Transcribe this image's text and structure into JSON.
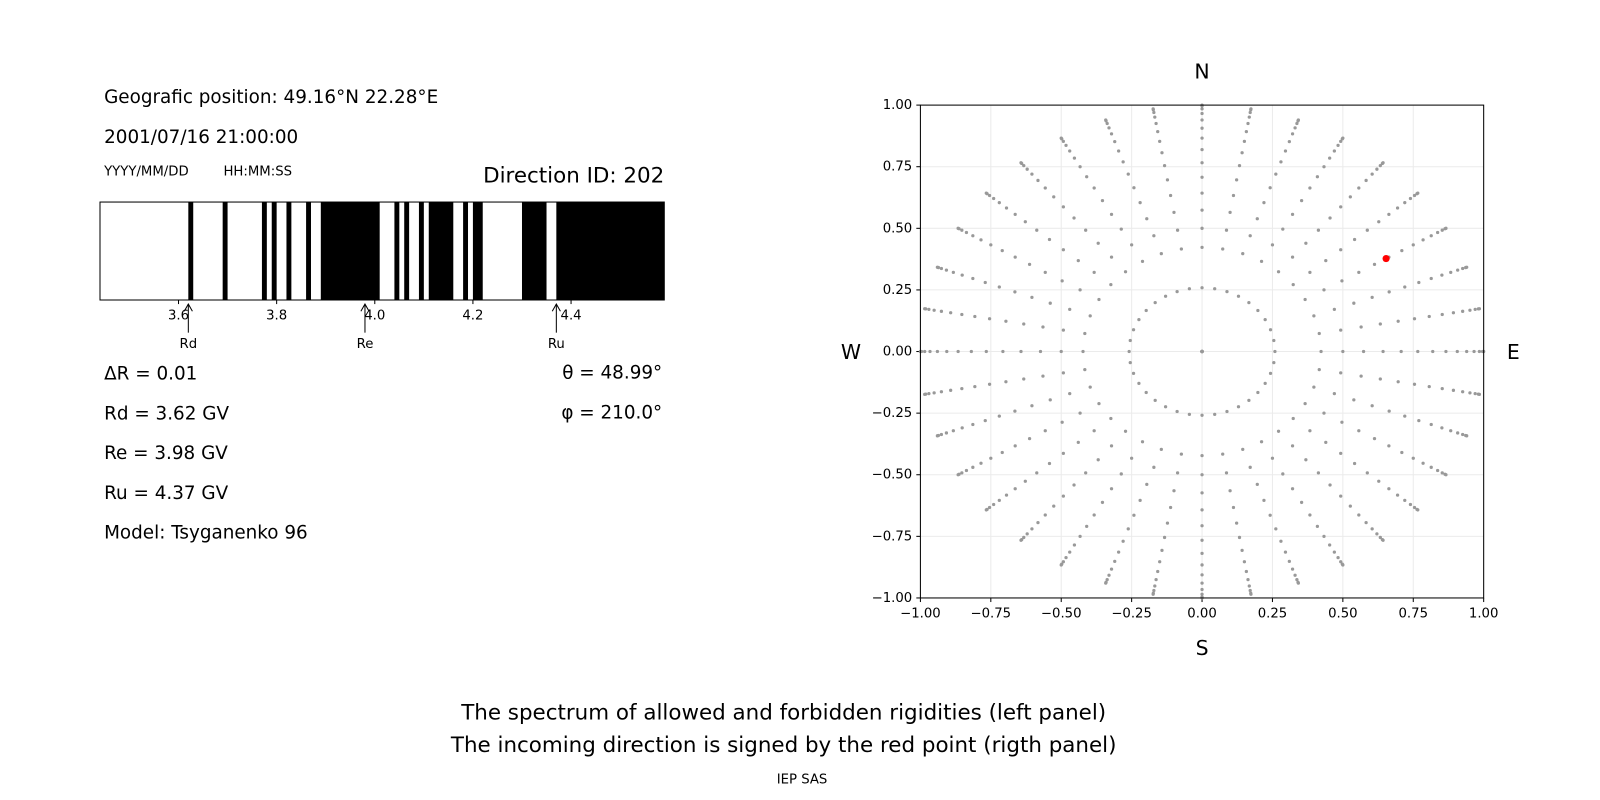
{
  "info": {
    "position": "Geografic position: 49.16°N 22.28°E",
    "datetime": "2001/07/16 21:00:00",
    "date_format": "YYYY/MM/DD",
    "time_format": "HH:MM:SS",
    "direction": "Direction ID: 202",
    "delta_r": "ΔR = 0.01",
    "rd": "Rd = 3.62 GV",
    "re": "Re = 3.98 GV",
    "ru": "Ru = 4.37 GV",
    "model": "Model: Tsyganenko 96",
    "theta": "θ = 48.99°",
    "phi": "φ = 210.0°"
  },
  "chart_data": [
    {
      "type": "spectrum",
      "color": "#000000",
      "forbidden": [
        [
          3.62,
          3.63
        ],
        [
          3.69,
          3.7
        ],
        [
          3.77,
          3.78
        ],
        [
          3.79,
          3.8
        ],
        [
          3.82,
          3.83
        ],
        [
          3.86,
          3.87
        ],
        [
          3.89,
          4.01
        ],
        [
          4.04,
          4.05
        ],
        [
          4.06,
          4.07
        ],
        [
          4.09,
          4.1
        ],
        [
          4.11,
          4.16
        ],
        [
          4.18,
          4.19
        ],
        [
          4.2,
          4.22
        ],
        [
          4.3,
          4.35
        ],
        [
          4.37,
          4.59
        ]
      ],
      "xlim": [
        3.44,
        4.59
      ],
      "xticks": [
        3.6,
        3.8,
        {
          "value": 4,
          "label": "4.0"
        },
        4.2,
        4.4
      ],
      "markers": [
        {
          "label": "Rd",
          "x": 3.62
        },
        {
          "label": "Re",
          "x": 3.98
        },
        {
          "label": "Ru",
          "x": 4.37
        }
      ]
    },
    {
      "type": "polar-scatter",
      "color": "#999999",
      "zenith": [
        0,
        15,
        25,
        30,
        35,
        40,
        45,
        50,
        55,
        60,
        65,
        70,
        75,
        80,
        85,
        90
      ],
      "azimuth": [
        0,
        10,
        20,
        30,
        40,
        50,
        60,
        70,
        80,
        90,
        100,
        110,
        120,
        130,
        140,
        150,
        160,
        170,
        180,
        190,
        200,
        210,
        220,
        230,
        240,
        250,
        260,
        270,
        280,
        290,
        300,
        310,
        320,
        330,
        340,
        350
      ],
      "point": {
        "zenith": 48.99,
        "azimuth": 210
      },
      "point_color": "#ff0000",
      "xlim": [
        -1,
        1
      ],
      "ylim": [
        -1,
        1
      ],
      "xticks": [
        {
          "value": -1,
          "label": "−1.00"
        },
        {
          "value": -0.75,
          "label": "−0.75"
        },
        {
          "value": -0.5,
          "label": "−0.50"
        },
        {
          "value": -0.25,
          "label": "−0.25"
        },
        {
          "value": 0,
          "label": "0.00"
        },
        0.25,
        {
          "value": 0.5,
          "label": "0.50"
        },
        0.75,
        {
          "value": 1,
          "label": "1.00"
        }
      ],
      "yticks": [
        {
          "value": -1,
          "label": "−1.00"
        },
        {
          "value": -0.75,
          "label": "−0.75"
        },
        {
          "value": -0.5,
          "label": "−0.50"
        },
        {
          "value": -0.25,
          "label": "−0.25"
        },
        {
          "value": 0,
          "label": "0.00"
        },
        0.25,
        {
          "value": 0.5,
          "label": "0.50"
        },
        0.75,
        {
          "value": 1,
          "label": "1.00"
        }
      ],
      "grid": true,
      "labels": {
        "top": "N",
        "bottom": "S",
        "left": "W",
        "right": "E"
      }
    }
  ],
  "caption": [
    "The spectrum of allowed and forbidden rigidities (left panel)",
    "The incoming direction is signed by the red point (rigth panel)"
  ],
  "footer": "IEP SAS"
}
